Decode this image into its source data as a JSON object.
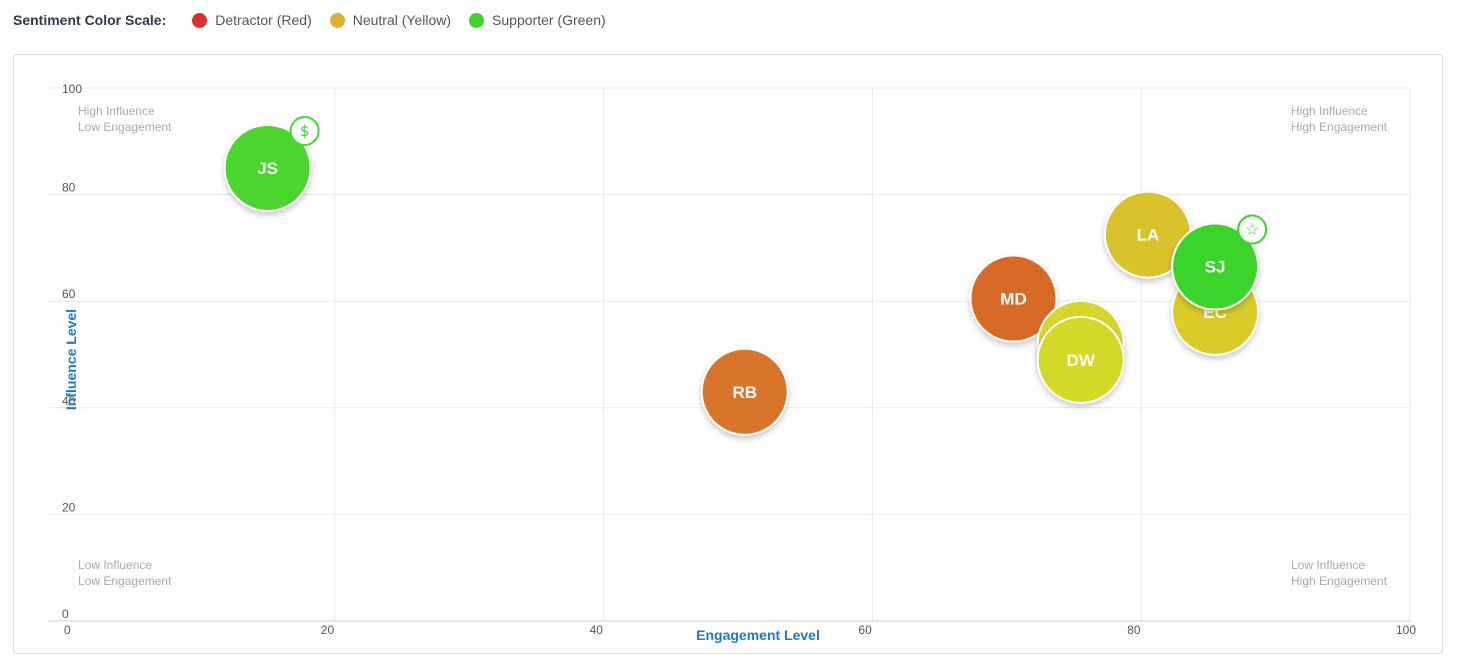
{
  "legend": {
    "title": "Sentiment Color Scale:",
    "items": [
      {
        "label": "Detractor (Red)",
        "color": "#dc2f2f"
      },
      {
        "label": "Neutral (Yellow)",
        "color": "#dbb32c"
      },
      {
        "label": "Supporter (Green)",
        "color": "#3bd42a"
      }
    ]
  },
  "chart_data": {
    "type": "scatter",
    "xlabel": "Engagement Level",
    "ylabel": "Influence Level",
    "xlim": [
      0,
      100
    ],
    "ylim": [
      0,
      100
    ],
    "x_ticks": [
      0,
      20,
      40,
      60,
      80,
      100
    ],
    "y_ticks": [
      0,
      20,
      40,
      60,
      80,
      100
    ],
    "grid": true,
    "quadrants": {
      "top_left": [
        "High Influence",
        "Low Engagement"
      ],
      "top_right": [
        "High Influence",
        "High Engagement"
      ],
      "bottom_left": [
        "Low Influence",
        "Low Engagement"
      ],
      "bottom_right": [
        "Low Influence",
        "High Engagement"
      ]
    },
    "points": [
      {
        "label": "JS",
        "x": 15,
        "y": 85,
        "color": "#4cd62e",
        "badge": "$",
        "badge_icon": "dollar-icon"
      },
      {
        "label": "RB",
        "x": 50.5,
        "y": 43,
        "color": "#d9752a"
      },
      {
        "label": "MD",
        "x": 70.5,
        "y": 60.5,
        "color": "#d96a26"
      },
      {
        "label": "",
        "x": 75.5,
        "y": 52,
        "color": "#d6d62a"
      },
      {
        "label": "DW",
        "x": 75.5,
        "y": 49,
        "color": "#d2d926"
      },
      {
        "label": "LA",
        "x": 80.5,
        "y": 72.5,
        "color": "#d9c22a"
      },
      {
        "label": "EC",
        "x": 85.5,
        "y": 58,
        "color": "#d9cb2a"
      },
      {
        "label": "SJ",
        "x": 85.5,
        "y": 66.5,
        "color": "#3bd42a",
        "badge": "☆",
        "badge_icon": "star-icon"
      }
    ]
  }
}
